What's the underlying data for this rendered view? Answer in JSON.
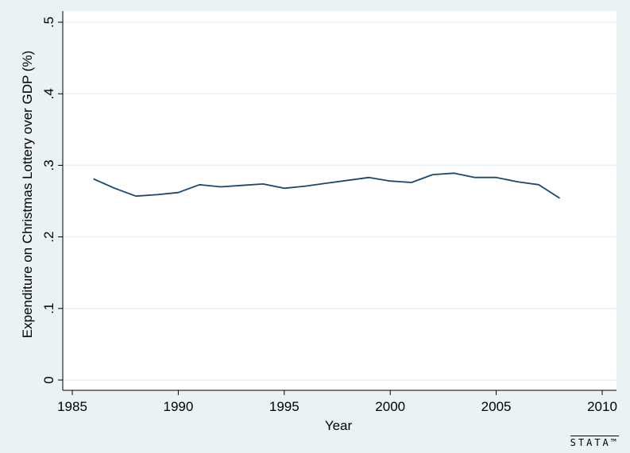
{
  "chart_data": {
    "type": "line",
    "xlabel": "Year",
    "ylabel": "Expenditure on Christmas Lottery over GDP (%)",
    "xlim": [
      1985,
      2010
    ],
    "ylim": [
      0,
      0.5
    ],
    "x_ticks": [
      1985,
      1990,
      1995,
      2000,
      2005,
      2010
    ],
    "x_tick_labels": [
      "1985",
      "1990",
      "1995",
      "2000",
      "2005",
      "2010"
    ],
    "y_ticks": [
      0,
      0.1,
      0.2,
      0.3,
      0.4,
      0.5
    ],
    "y_tick_labels": [
      "0",
      ".1",
      ".2",
      ".3",
      ".4",
      ".5"
    ],
    "grid": "horizontal",
    "series": [
      {
        "color": "#1a476f",
        "x": [
          1986,
          1987,
          1988,
          1989,
          1990,
          1991,
          1992,
          1993,
          1994,
          1995,
          1996,
          1997,
          1998,
          1999,
          2000,
          2001,
          2002,
          2003,
          2004,
          2005,
          2006,
          2007,
          2008
        ],
        "y": [
          0.281,
          0.268,
          0.257,
          0.259,
          0.262,
          0.273,
          0.27,
          0.272,
          0.274,
          0.268,
          0.271,
          0.275,
          0.279,
          0.283,
          0.278,
          0.276,
          0.287,
          0.289,
          0.283,
          0.283,
          0.277,
          0.273,
          0.254
        ]
      }
    ]
  },
  "branding": {
    "logo_text": "STATA™"
  }
}
